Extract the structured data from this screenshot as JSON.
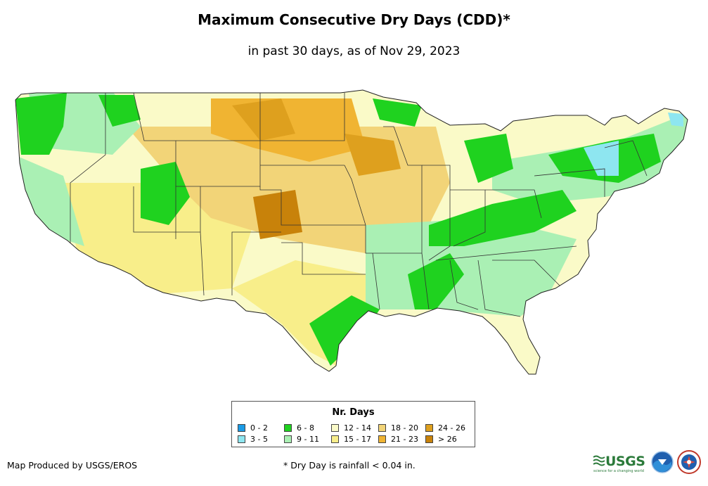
{
  "header": {
    "title": "Maximum Consecutive Dry Days (CDD)*",
    "subtitle": "in past 30 days, as of Nov 29, 2023"
  },
  "legend": {
    "title": "Nr. Days",
    "items": [
      {
        "label": "0 - 2",
        "color": "#1a9be6"
      },
      {
        "label": "3 - 5",
        "color": "#8ee6f0"
      },
      {
        "label": "6 - 8",
        "color": "#1fd21f"
      },
      {
        "label": "9 - 11",
        "color": "#aaf0b4"
      },
      {
        "label": "12 - 14",
        "color": "#fafac8"
      },
      {
        "label": "15 - 17",
        "color": "#f8ee8a"
      },
      {
        "label": "18 - 20",
        "color": "#f2d478"
      },
      {
        "label": "21 - 23",
        "color": "#f0b432"
      },
      {
        "label": "24 - 26",
        "color": "#dea01e"
      },
      {
        "label": "> 26",
        "color": "#c8820a"
      }
    ]
  },
  "footer": {
    "producer": "Map Produced by USGS/EROS",
    "footnote": "* Dry Day is rainfall < 0.04 in."
  },
  "logos": {
    "usgs": "USGS",
    "usgs_tagline": "science for a changing world"
  }
}
